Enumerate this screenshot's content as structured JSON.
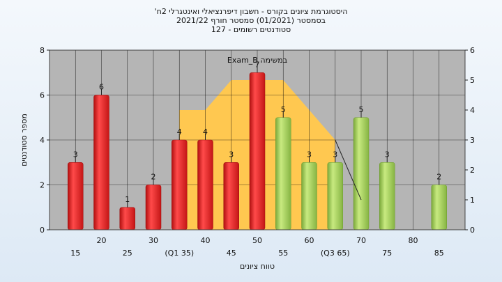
{
  "title_lines": [
    "'היסטוגרמת ציונים בקורס - חשבון דיפרנציאלי ואינטגרלי 2ח",
    "בסמסטר  (01/2021)  סמסטר חורף 2021/22",
    "סטודנטים רשומים - 127"
  ],
  "colors": {
    "plot_bg": "#b5b5b5",
    "grid": "#000000",
    "fail_bar": "#e02020",
    "pass_bar": "#9ccc55",
    "band": "#ffc850"
  },
  "chart_data": {
    "type": "bar",
    "xlabel": "טווח ציונים",
    "ylabel": "מספר סטודנטים",
    "ylim": [
      0,
      8
    ],
    "y_ticks": [
      "0",
      "2",
      "4",
      "6",
      "8"
    ],
    "y2lim": [
      0,
      6
    ],
    "y2_ticks": [
      "0",
      "1",
      "2",
      "3",
      "4",
      "5",
      "6"
    ],
    "grid": true,
    "categories": [
      "15",
      "20",
      "25",
      "30",
      "35",
      "40",
      "45",
      "50",
      "55",
      "60",
      "65",
      "70",
      "75",
      "80",
      "85"
    ],
    "x_tick_labels": [
      "15",
      "20",
      "25",
      "30",
      "(Q1 35)",
      "40",
      "45",
      "50",
      "55",
      "60",
      "(Q3 65)",
      "70",
      "75",
      "80",
      "85"
    ],
    "series": [
      {
        "values": [
          3,
          6,
          1,
          2,
          4,
          4,
          3,
          7,
          5,
          3,
          3,
          5,
          3,
          0,
          2
        ],
        "value_labels": [
          "3",
          "6",
          "1",
          "2",
          "4",
          "4",
          "3",
          "7",
          "5",
          "3",
          "3",
          "5",
          "3",
          "",
          "2"
        ],
        "pass": [
          false,
          false,
          false,
          false,
          false,
          false,
          false,
          false,
          true,
          true,
          true,
          true,
          true,
          false,
          true
        ]
      }
    ],
    "quartile_band": {
      "x": [
        35,
        40,
        45,
        50,
        55,
        60,
        65
      ],
      "y": [
        4,
        4,
        5,
        5,
        5,
        4,
        3
      ]
    },
    "annotation": {
      "text": "Exam_B במשימה",
      "line_x": [
        65,
        70
      ],
      "line_y": [
        3,
        1
      ]
    }
  }
}
